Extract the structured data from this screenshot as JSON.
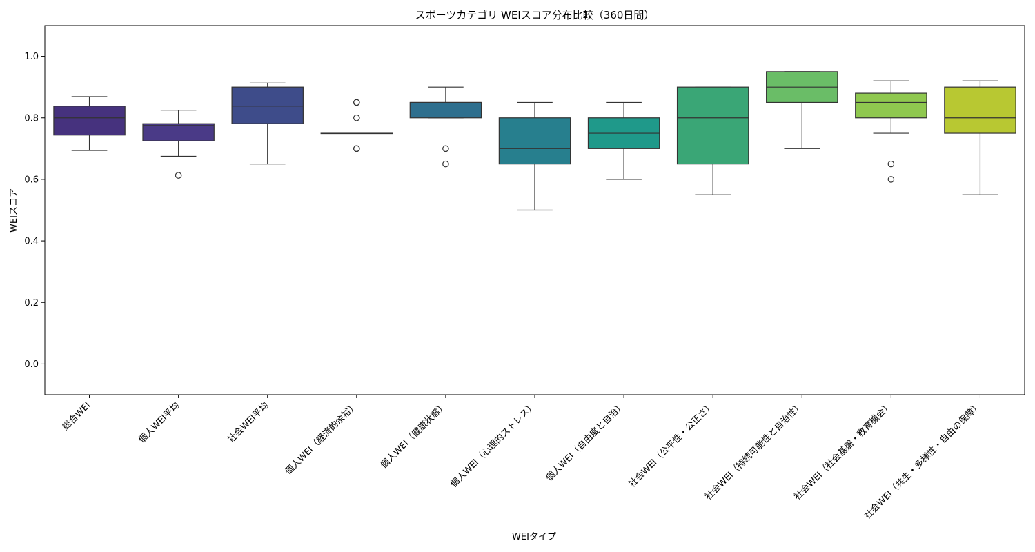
{
  "chart_data": {
    "type": "box",
    "title": "スポーツカテゴリ WEIスコア分布比較（360日間）",
    "xlabel": "WEIタイプ",
    "ylabel": "WEIスコア",
    "ylim": [
      -0.1,
      1.1
    ],
    "yticks": [
      "0.0",
      "0.2",
      "0.4",
      "0.6",
      "0.8",
      "1.0"
    ],
    "grid": false,
    "legend": "none",
    "categories": [
      "総合WEI",
      "個人WEI平均",
      "社会WEI平均",
      "個人WEI（経済的余裕）",
      "個人WEI（健康状態）",
      "個人WEI（心理的ストレス）",
      "個人WEI（自由度と自治）",
      "社会WEI（公平性・公正さ）",
      "社会WEI（持続可能性と自治性）",
      "社会WEI（社会基盤・教育機会）",
      "社会WEI（共生・多様性・自由の保障）"
    ],
    "boxes": [
      {
        "whislo": 0.694,
        "q1": 0.744,
        "med": 0.8,
        "q3": 0.838,
        "whishi": 0.869,
        "fliers": [],
        "color": "#46327e"
      },
      {
        "whislo": 0.675,
        "q1": 0.725,
        "med": 0.775,
        "q3": 0.781,
        "whishi": 0.825,
        "fliers": [
          0.613
        ],
        "color": "#4a3a87"
      },
      {
        "whislo": 0.65,
        "q1": 0.781,
        "med": 0.838,
        "q3": 0.9,
        "whishi": 0.913,
        "fliers": [],
        "color": "#3e4c8a"
      },
      {
        "whislo": 0.75,
        "q1": 0.75,
        "med": 0.75,
        "q3": 0.75,
        "whishi": 0.75,
        "fliers": [
          0.85,
          0.85,
          0.8,
          0.7,
          0.7
        ],
        "color": "#365c8d"
      },
      {
        "whislo": 0.8,
        "q1": 0.8,
        "med": 0.85,
        "q3": 0.85,
        "whishi": 0.9,
        "fliers": [
          0.7,
          0.65
        ],
        "color": "#2e6f8e"
      },
      {
        "whislo": 0.5,
        "q1": 0.65,
        "med": 0.7,
        "q3": 0.8,
        "whishi": 0.85,
        "fliers": [],
        "color": "#277f8e"
      },
      {
        "whislo": 0.6,
        "q1": 0.7,
        "med": 0.75,
        "q3": 0.8,
        "whishi": 0.85,
        "fliers": [],
        "color": "#1f998a"
      },
      {
        "whislo": 0.55,
        "q1": 0.65,
        "med": 0.8,
        "q3": 0.9,
        "whishi": 0.9,
        "fliers": [],
        "color": "#3aa676"
      },
      {
        "whislo": 0.7,
        "q1": 0.85,
        "med": 0.9,
        "q3": 0.95,
        "whishi": 0.95,
        "fliers": [],
        "color": "#6abd67"
      },
      {
        "whislo": 0.75,
        "q1": 0.8,
        "med": 0.85,
        "q3": 0.88,
        "whishi": 0.92,
        "fliers": [
          0.65,
          0.6
        ],
        "color": "#8fc84f"
      },
      {
        "whislo": 0.55,
        "q1": 0.75,
        "med": 0.8,
        "q3": 0.9,
        "whishi": 0.92,
        "fliers": [],
        "color": "#b8c832"
      }
    ]
  }
}
